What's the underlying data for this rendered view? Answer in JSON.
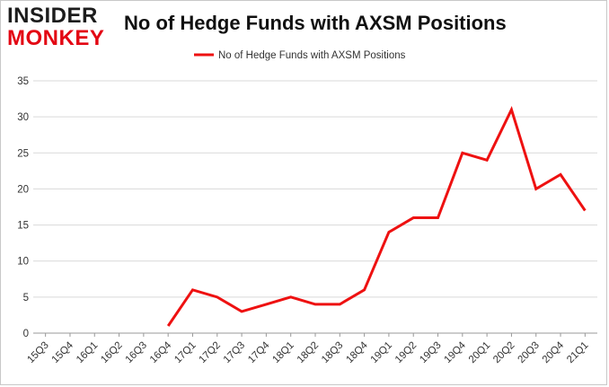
{
  "logo": {
    "line1": "INSIDER",
    "line2": "MONKEY"
  },
  "chart_data": {
    "type": "line",
    "title": "No of Hedge Funds with AXSM Positions",
    "categories": [
      "15Q3",
      "15Q4",
      "16Q1",
      "16Q2",
      "16Q3",
      "16Q4",
      "17Q1",
      "17Q2",
      "17Q3",
      "17Q4",
      "18Q1",
      "18Q2",
      "18Q3",
      "18Q4",
      "19Q1",
      "19Q2",
      "19Q3",
      "19Q4",
      "20Q1",
      "20Q2",
      "20Q3",
      "20Q4",
      "21Q1"
    ],
    "series": [
      {
        "name": "No of Hedge Funds with AXSM Positions",
        "values": [
          null,
          null,
          null,
          null,
          null,
          1,
          6,
          5,
          3,
          4,
          5,
          4,
          4,
          6,
          14,
          16,
          16,
          25,
          24,
          31,
          20,
          22,
          17
        ],
        "color": "#ee1111"
      }
    ],
    "ylim": [
      0,
      35
    ],
    "yticks": [
      0,
      5,
      10,
      15,
      20,
      25,
      30,
      35
    ],
    "grid": true,
    "legend_position": "top-center",
    "xlabel": "",
    "ylabel": ""
  }
}
